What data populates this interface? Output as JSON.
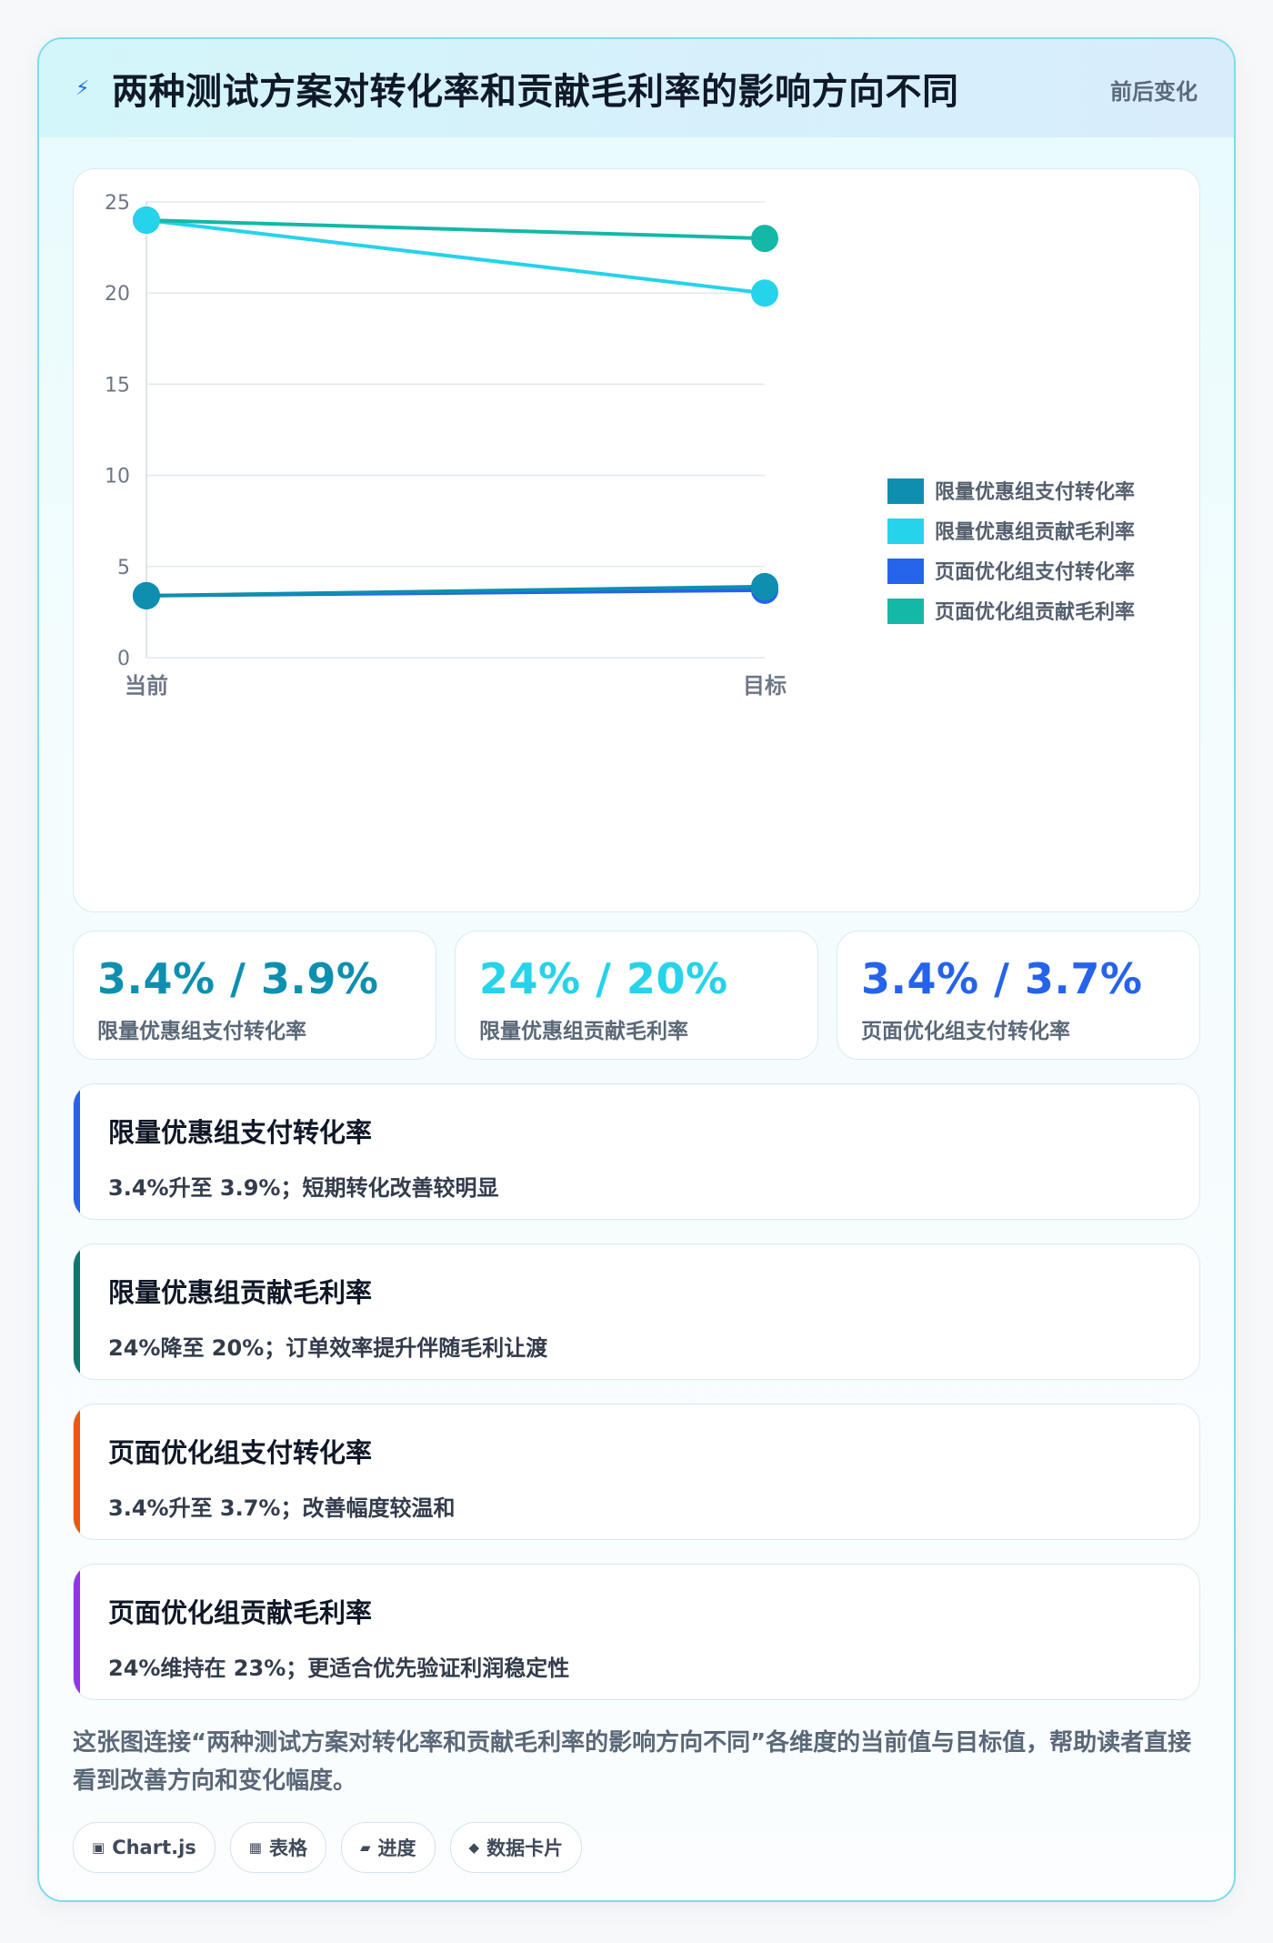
{
  "header": {
    "icon": "bolt-icon",
    "title": "两种测试方案对转化率和贡献毛利率的影响方向不同",
    "tag": "前后变化"
  },
  "chart_data": {
    "type": "line",
    "categories": [
      "当前",
      "目标"
    ],
    "ylim": [
      0,
      25
    ],
    "yticks": [
      0,
      5,
      10,
      15,
      20,
      25
    ],
    "grid": true,
    "legend_position": "right",
    "series": [
      {
        "name": "限量优惠组支付转化率",
        "values": [
          3.4,
          3.9
        ],
        "color": "#0e8fb0"
      },
      {
        "name": "限量优惠组贡献毛利率",
        "values": [
          24,
          20
        ],
        "color": "#25d3ea"
      },
      {
        "name": "页面优化组支付转化率",
        "values": [
          3.4,
          3.7
        ],
        "color": "#2563eb"
      },
      {
        "name": "页面优化组贡献毛利率",
        "values": [
          24,
          23
        ],
        "color": "#14b8a6"
      }
    ]
  },
  "kpis": [
    {
      "value": "3.4% / 3.9%",
      "label": "限量优惠组支付转化率",
      "color": "#0e8fb0"
    },
    {
      "value": "24% / 20%",
      "label": "限量优惠组贡献毛利率",
      "color": "#25d3ea"
    },
    {
      "value": "3.4% / 3.7%",
      "label": "页面优化组支付转化率",
      "color": "#2563eb"
    }
  ],
  "notes": [
    {
      "title": "限量优惠组支付转化率",
      "desc": "3.4%升至 3.9%；短期转化改善较明显",
      "color": "#2563eb"
    },
    {
      "title": "限量优惠组贡献毛利率",
      "desc": "24%降至 20%；订单效率提升伴随毛利让渡",
      "color": "#0f766e"
    },
    {
      "title": "页面优化组支付转化率",
      "desc": "3.4%升至 3.7%；改善幅度较温和",
      "color": "#ea580c"
    },
    {
      "title": "页面优化组贡献毛利率",
      "desc": "24%维持在 23%；更适合优先验证利润稳定性",
      "color": "#9333ea"
    }
  ],
  "summary": "这张图连接“两种测试方案对转化率和贡献毛利率的影响方向不同”各维度的当前值与目标值，帮助读者直接看到改善方向和变化幅度。",
  "chips": [
    {
      "icon": "▣",
      "label": "Chart.js"
    },
    {
      "icon": "▦",
      "label": "表格"
    },
    {
      "icon": "▰",
      "label": "进度"
    },
    {
      "icon": "◆",
      "label": "数据卡片"
    }
  ]
}
